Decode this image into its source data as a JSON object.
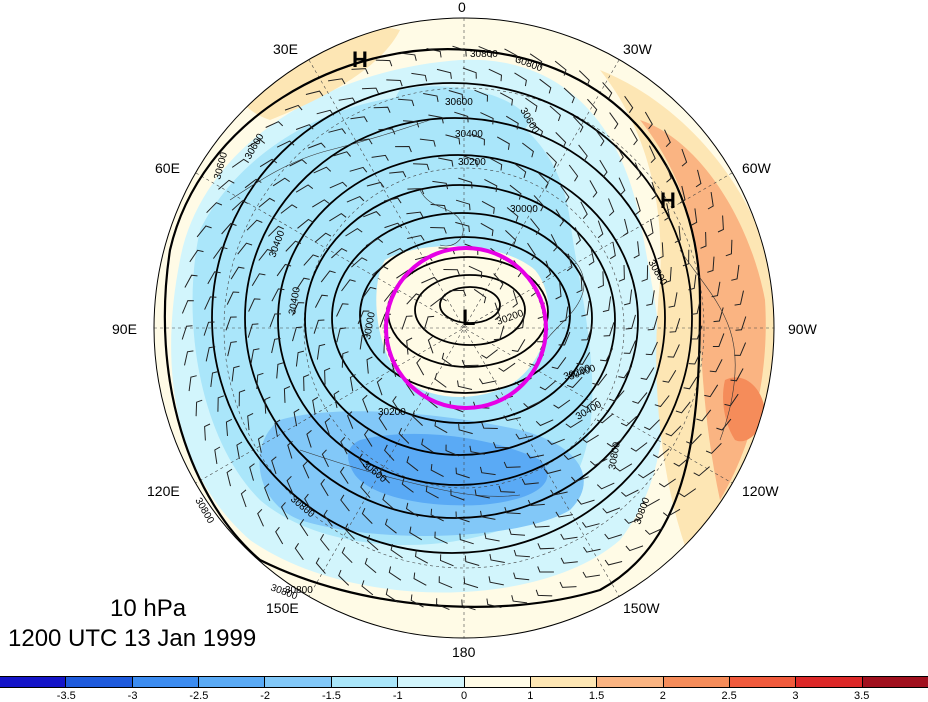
{
  "map": {
    "projection": "north-polar-stereographic",
    "field": "10 hPa geopotential height with wind barbs and shaded anomaly",
    "lon_labels": [
      "0",
      "30W",
      "60W",
      "90W",
      "120W",
      "150W",
      "180",
      "150E",
      "120E",
      "90E",
      "60E",
      "30E"
    ],
    "contour_labels": [
      "30800",
      "30600",
      "30400",
      "30200",
      "30000",
      "30800",
      "30600",
      "30400",
      "30800",
      "30200",
      "30400",
      "30600",
      "30200",
      "30000",
      "30400",
      "30600",
      "30200",
      "30800",
      "30800",
      "30800",
      "30800",
      "30800",
      "30600",
      "30800",
      "30400"
    ],
    "high_labels": [
      "H",
      "H"
    ],
    "low_labels": [
      "L"
    ],
    "highlight_circle_color": "#e600e6"
  },
  "title": {
    "level": "10 hPa",
    "time": "1200 UTC 13 Jan 1999"
  },
  "colorbar": {
    "colors": [
      "#1414c8",
      "#1e5adc",
      "#3c8cf0",
      "#5aaaf5",
      "#82c8f8",
      "#aae6fa",
      "#d2f5fc",
      "#fffbe6",
      "#fde6b4",
      "#fab482",
      "#f58c5a",
      "#f05a3c",
      "#dc2828",
      "#a0101e"
    ],
    "tick_labels": [
      "-3.5",
      "-3",
      "-2.5",
      "-2",
      "-1.5",
      "-1",
      "0",
      "1",
      "1.5",
      "2",
      "2.5",
      "3",
      "3.5"
    ]
  }
}
